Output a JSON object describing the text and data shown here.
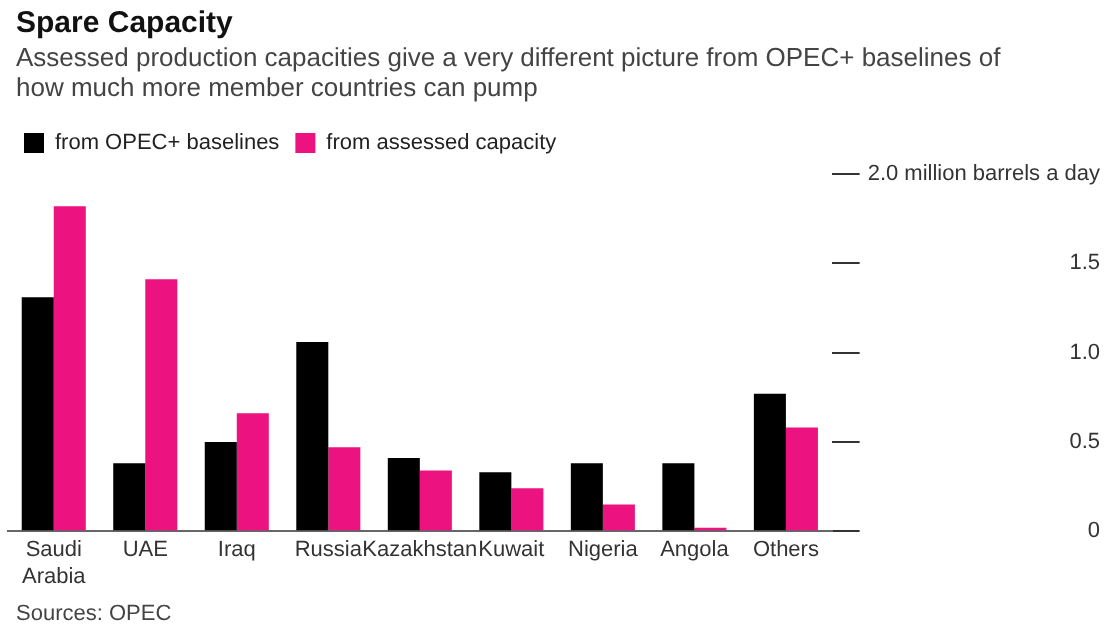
{
  "chart_data": {
    "type": "bar",
    "title": "Spare Capacity",
    "subtitle": "Assessed production capacities give a very different picture from OPEC+ baselines of how much more member countries can pump",
    "categories": [
      "Saudi Arabia",
      "UAE",
      "Iraq",
      "Russia",
      "Kazakhstan",
      "Kuwait",
      "Nigeria",
      "Angola",
      "Others"
    ],
    "series": [
      {
        "name": "from OPEC+ baselines",
        "color": "#000000",
        "values": [
          1.31,
          0.38,
          0.5,
          1.06,
          0.41,
          0.33,
          0.38,
          0.38,
          0.77
        ]
      },
      {
        "name": "from assessed capacity",
        "color": "#ec1380",
        "values": [
          1.82,
          1.41,
          0.66,
          0.47,
          0.34,
          0.24,
          0.15,
          0.02,
          0.58
        ]
      }
    ],
    "ylim": [
      0,
      2
    ],
    "yticks": [
      0,
      0.5,
      {
        "value": 1,
        "label": "1.0"
      },
      1.5,
      {
        "value": 2,
        "label": "2.0 million barrels a day"
      }
    ],
    "grid": false,
    "legend": "top left",
    "annotations": [
      "Sources: OPEC"
    ]
  }
}
